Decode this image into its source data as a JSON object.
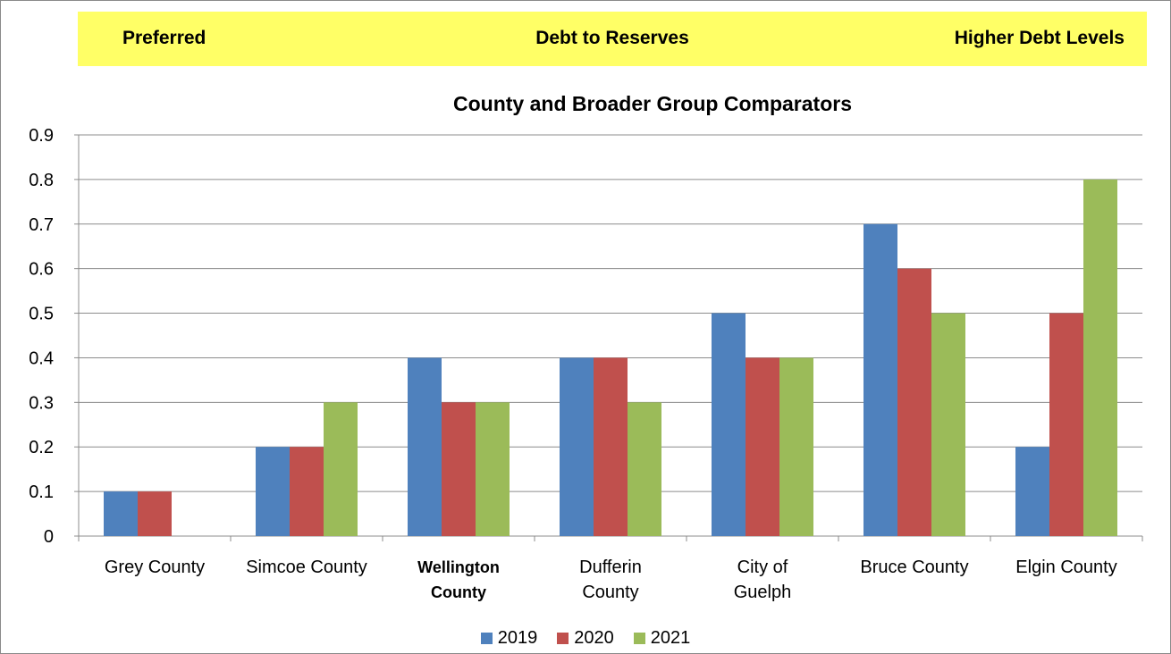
{
  "banner": {
    "left": "Preferred",
    "center": "Debt to Reserves",
    "right": "Higher Debt Levels"
  },
  "chart_data": {
    "type": "bar",
    "title": "County and Broader Group Comparators",
    "xlabel": "",
    "ylabel": "",
    "ylim": [
      0,
      0.9
    ],
    "yticks": [
      "0",
      "0.1",
      "0.2",
      "0.3",
      "0.4",
      "0.5",
      "0.6",
      "0.7",
      "0.8",
      "0.9"
    ],
    "categories": [
      [
        "Grey County"
      ],
      [
        "Simcoe County"
      ],
      [
        "Wellington",
        "County"
      ],
      [
        "Dufferin",
        "County"
      ],
      [
        "City of",
        "Guelph"
      ],
      [
        "Bruce County"
      ],
      [
        "Elgin County"
      ]
    ],
    "bold_category_index": 2,
    "series": [
      {
        "name": "2019",
        "color": "#4f81bd",
        "values": [
          0.1,
          0.2,
          0.4,
          0.4,
          0.5,
          0.7,
          0.2
        ]
      },
      {
        "name": "2020",
        "color": "#c0504d",
        "values": [
          0.1,
          0.2,
          0.3,
          0.4,
          0.4,
          0.6,
          0.5
        ]
      },
      {
        "name": "2021",
        "color": "#9bbb59",
        "values": [
          0,
          0.3,
          0.3,
          0.3,
          0.4,
          0.5,
          0.8
        ]
      }
    ],
    "grid": true,
    "legend_position": "bottom"
  }
}
